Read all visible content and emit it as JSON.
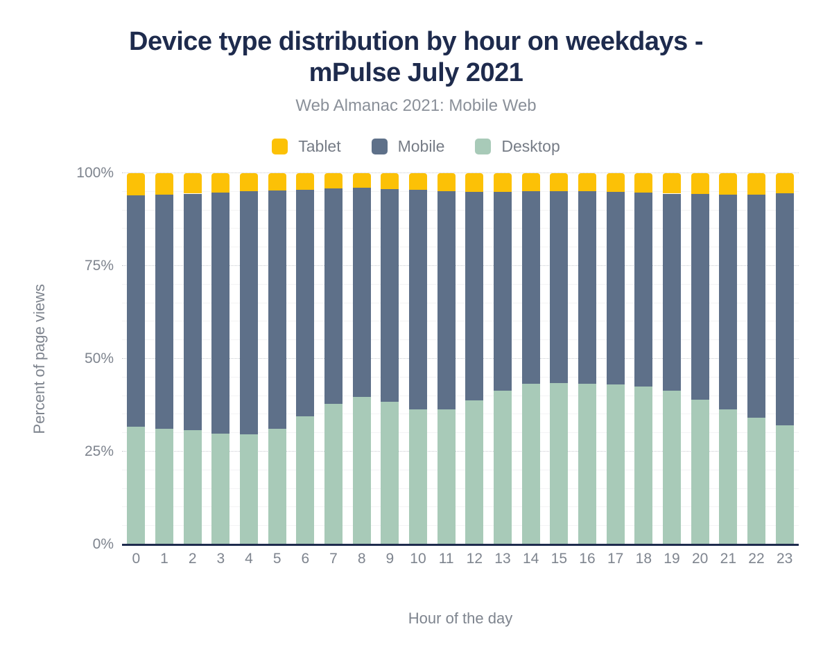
{
  "header": {
    "title": "Device type distribution by hour on weekdays - mPulse July 2021",
    "title_lines": [
      "Device type distribution by hour on weekdays -",
      "mPulse July 2021"
    ],
    "subtitle": "Web Almanac 2021: Mobile Web"
  },
  "chart_data": {
    "type": "bar",
    "stacked": true,
    "title": "Device type distribution by hour on weekdays - mPulse July 2021",
    "subtitle": "Web Almanac 2021: Mobile Web",
    "xlabel": "Hour of the day",
    "ylabel": "Percent of page views",
    "x": [
      "0",
      "1",
      "2",
      "3",
      "4",
      "5",
      "6",
      "7",
      "8",
      "9",
      "10",
      "11",
      "12",
      "13",
      "14",
      "15",
      "16",
      "17",
      "18",
      "19",
      "20",
      "21",
      "22",
      "23"
    ],
    "ylim": [
      0,
      100
    ],
    "yticks": [
      0,
      25,
      50,
      75,
      100
    ],
    "ytick_suffix": "%",
    "minor_grid_step": 5,
    "grid": true,
    "legend_position": "top",
    "stack_order": [
      "Desktop",
      "Mobile",
      "Tablet"
    ],
    "series": [
      {
        "name": "Tablet",
        "color": "#fcc106",
        "values": [
          5.9,
          5.8,
          5.5,
          5.2,
          4.9,
          4.6,
          4.4,
          4.1,
          3.9,
          4.2,
          4.5,
          4.9,
          5.1,
          5.1,
          4.9,
          4.8,
          4.9,
          5.0,
          5.2,
          5.5,
          5.6,
          5.7,
          5.7,
          5.4
        ]
      },
      {
        "name": "Mobile",
        "color": "#5e7089",
        "values": [
          62.4,
          63.1,
          63.8,
          64.9,
          65.4,
          64.3,
          61.1,
          58.1,
          56.4,
          57.4,
          59.2,
          58.8,
          56.1,
          53.4,
          51.8,
          51.8,
          51.8,
          51.9,
          52.3,
          53.1,
          55.4,
          58.0,
          60.2,
          62.5
        ]
      },
      {
        "name": "Desktop",
        "color": "#a8cab8",
        "values": [
          31.7,
          31.1,
          30.7,
          29.9,
          29.7,
          31.1,
          34.5,
          37.8,
          39.7,
          38.4,
          36.3,
          36.3,
          38.8,
          41.5,
          43.3,
          43.4,
          43.3,
          43.1,
          42.5,
          41.4,
          39.0,
          36.3,
          34.1,
          32.1
        ]
      }
    ],
    "colors": {
      "title": "#1e2b4d",
      "axis_line": "#1e2b4d",
      "tick_text": "#7e848e",
      "subtitle_text": "#8a9099",
      "major_grid": "#c7cacf",
      "minor_grid": "#f3f3f4",
      "background": "#ffffff"
    }
  }
}
